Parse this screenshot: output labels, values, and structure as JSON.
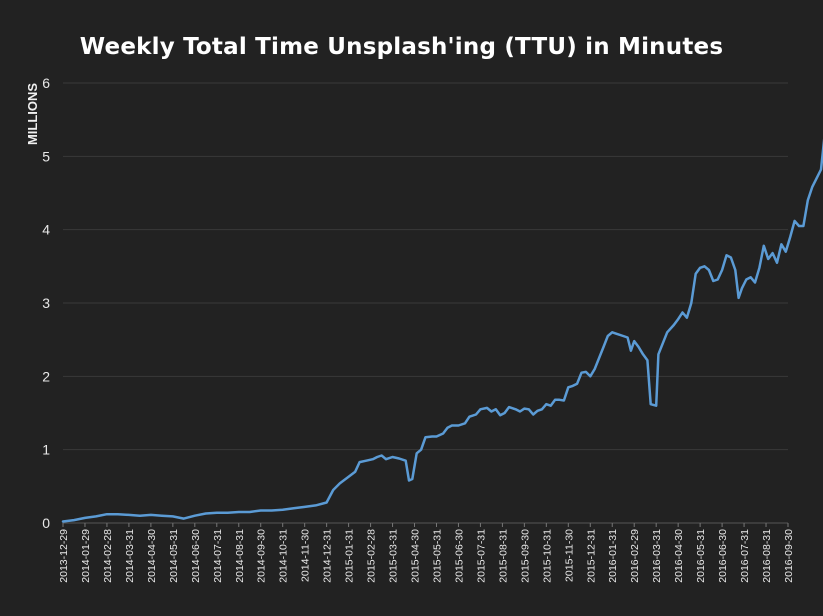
{
  "chart_data": {
    "type": "line",
    "title": "Weekly Total Time Unsplash'ing (TTU) in Minutes",
    "ylabel": "MILLIONS",
    "xlabel": "",
    "ylim": [
      0,
      6
    ],
    "yticks": [
      0,
      1,
      2,
      3,
      4,
      5,
      6
    ],
    "grid": true,
    "legend": "none",
    "line_color": "#5b9bd5",
    "grid_color": "#3a3a3a",
    "background": "#222222",
    "x_tick_labels": [
      "2013-12-29",
      "2014-01-29",
      "2014-02-28",
      "2014-03-31",
      "2014-04-30",
      "2014-05-31",
      "2014-06-30",
      "2014-07-31",
      "2014-08-31",
      "2014-09-30",
      "2014-10-31",
      "2014-11-30",
      "2014-12-31",
      "2015-01-31",
      "2015-02-28",
      "2015-03-31",
      "2015-04-30",
      "2015-05-31",
      "2015-06-30",
      "2015-07-31",
      "2015-08-31",
      "2015-09-30",
      "2015-10-31",
      "2015-11-30",
      "2015-12-31",
      "2016-01-31",
      "2016-02-29",
      "2016-03-31",
      "2016-04-30",
      "2016-05-31",
      "2016-06-30",
      "2016-07-31",
      "2016-08-31",
      "2016-09-30"
    ],
    "series": [
      {
        "values": [
          [
            0.0,
            0.02
          ],
          [
            0.5,
            0.04
          ],
          [
            1.0,
            0.07
          ],
          [
            1.5,
            0.09
          ],
          [
            2.0,
            0.12
          ],
          [
            2.5,
            0.12
          ],
          [
            3.0,
            0.11
          ],
          [
            3.5,
            0.1
          ],
          [
            4.0,
            0.11
          ],
          [
            4.5,
            0.1
          ],
          [
            5.0,
            0.09
          ],
          [
            5.5,
            0.06
          ],
          [
            6.0,
            0.1
          ],
          [
            6.5,
            0.13
          ],
          [
            7.0,
            0.14
          ],
          [
            7.5,
            0.14
          ],
          [
            8.0,
            0.15
          ],
          [
            8.5,
            0.15
          ],
          [
            9.0,
            0.17
          ],
          [
            9.5,
            0.17
          ],
          [
            10.0,
            0.18
          ],
          [
            10.5,
            0.2
          ],
          [
            11.0,
            0.22
          ],
          [
            11.5,
            0.24
          ],
          [
            12.0,
            0.28
          ],
          [
            12.3,
            0.45
          ],
          [
            12.6,
            0.54
          ],
          [
            13.0,
            0.63
          ],
          [
            13.3,
            0.7
          ],
          [
            13.5,
            0.83
          ],
          [
            13.8,
            0.85
          ],
          [
            14.1,
            0.87
          ],
          [
            14.3,
            0.9
          ],
          [
            14.5,
            0.92
          ],
          [
            14.7,
            0.87
          ],
          [
            15.0,
            0.9
          ],
          [
            15.3,
            0.88
          ],
          [
            15.6,
            0.85
          ],
          [
            15.75,
            0.58
          ],
          [
            15.9,
            0.6
          ],
          [
            16.1,
            0.95
          ],
          [
            16.3,
            1.0
          ],
          [
            16.5,
            1.17
          ],
          [
            16.8,
            1.18
          ],
          [
            17.0,
            1.18
          ],
          [
            17.3,
            1.22
          ],
          [
            17.5,
            1.3
          ],
          [
            17.7,
            1.33
          ],
          [
            18.0,
            1.33
          ],
          [
            18.3,
            1.36
          ],
          [
            18.5,
            1.45
          ],
          [
            18.8,
            1.48
          ],
          [
            19.0,
            1.55
          ],
          [
            19.3,
            1.57
          ],
          [
            19.5,
            1.52
          ],
          [
            19.7,
            1.55
          ],
          [
            19.9,
            1.47
          ],
          [
            20.1,
            1.5
          ],
          [
            20.3,
            1.58
          ],
          [
            20.6,
            1.55
          ],
          [
            20.8,
            1.52
          ],
          [
            21.0,
            1.56
          ],
          [
            21.2,
            1.55
          ],
          [
            21.4,
            1.48
          ],
          [
            21.6,
            1.53
          ],
          [
            21.8,
            1.55
          ],
          [
            22.0,
            1.62
          ],
          [
            22.2,
            1.6
          ],
          [
            22.4,
            1.68
          ],
          [
            22.6,
            1.68
          ],
          [
            22.8,
            1.67
          ],
          [
            23.0,
            1.85
          ],
          [
            23.2,
            1.87
          ],
          [
            23.4,
            1.9
          ],
          [
            23.6,
            2.05
          ],
          [
            23.8,
            2.06
          ],
          [
            24.0,
            2.0
          ],
          [
            24.2,
            2.1
          ],
          [
            24.4,
            2.25
          ],
          [
            24.6,
            2.4
          ],
          [
            24.8,
            2.55
          ],
          [
            25.0,
            2.6
          ],
          [
            25.2,
            2.58
          ],
          [
            25.5,
            2.55
          ],
          [
            25.7,
            2.53
          ],
          [
            25.85,
            2.35
          ],
          [
            26.0,
            2.48
          ],
          [
            26.2,
            2.4
          ],
          [
            26.4,
            2.3
          ],
          [
            26.6,
            2.22
          ],
          [
            26.75,
            1.62
          ],
          [
            27.0,
            1.6
          ],
          [
            27.1,
            2.3
          ],
          [
            27.3,
            2.45
          ],
          [
            27.5,
            2.6
          ],
          [
            27.8,
            2.7
          ],
          [
            28.0,
            2.78
          ],
          [
            28.2,
            2.87
          ],
          [
            28.4,
            2.8
          ],
          [
            28.6,
            3.0
          ],
          [
            28.8,
            3.4
          ],
          [
            29.0,
            3.48
          ],
          [
            29.2,
            3.5
          ],
          [
            29.4,
            3.45
          ],
          [
            29.6,
            3.3
          ],
          [
            29.8,
            3.32
          ],
          [
            30.0,
            3.45
          ],
          [
            30.2,
            3.65
          ],
          [
            30.4,
            3.62
          ],
          [
            30.6,
            3.45
          ],
          [
            30.75,
            3.07
          ],
          [
            30.9,
            3.2
          ],
          [
            31.1,
            3.32
          ],
          [
            31.3,
            3.35
          ],
          [
            31.5,
            3.28
          ],
          [
            31.7,
            3.48
          ],
          [
            31.9,
            3.78
          ],
          [
            32.1,
            3.6
          ],
          [
            32.3,
            3.68
          ],
          [
            32.5,
            3.55
          ],
          [
            32.7,
            3.8
          ],
          [
            32.9,
            3.7
          ],
          [
            33.1,
            3.9
          ],
          [
            33.3,
            4.12
          ],
          [
            33.5,
            4.05
          ],
          [
            33.7,
            4.05
          ],
          [
            33.9,
            4.4
          ],
          [
            34.1,
            4.58
          ],
          [
            34.3,
            4.7
          ],
          [
            34.5,
            4.82
          ],
          [
            34.7,
            5.38
          ],
          [
            34.9,
            5.43
          ]
        ]
      }
    ]
  }
}
